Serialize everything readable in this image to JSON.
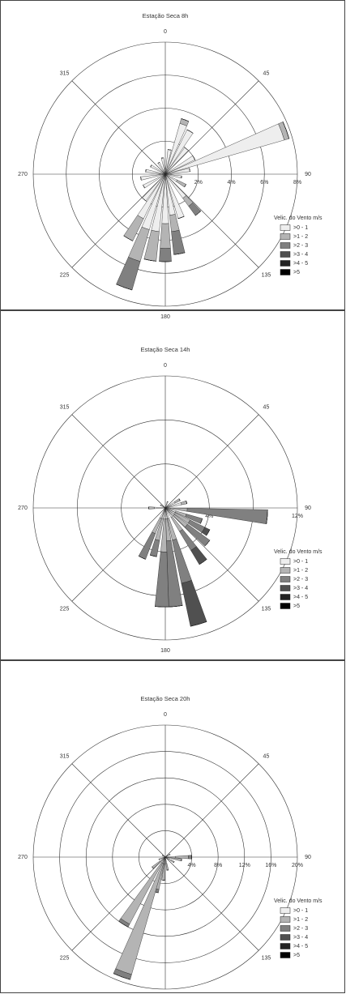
{
  "chart_data": [
    {
      "type": "wind_rose",
      "title": "Estação Seca 8h",
      "angle_ticks": [
        0,
        45,
        90,
        135,
        180,
        225,
        270,
        315
      ],
      "rlim": [
        0,
        8
      ],
      "rticks": [
        {
          "value": 2,
          "label": "2%"
        },
        {
          "value": 4,
          "label": "4%"
        },
        {
          "value": 6,
          "label": "6%"
        },
        {
          "value": 8,
          "label": "8%"
        }
      ],
      "legend_title": "Velic. do Vento m/s",
      "directions": [
        10,
        20,
        30,
        40,
        60,
        70,
        80,
        100,
        120,
        140,
        160,
        170,
        180,
        190,
        200,
        210,
        220,
        240,
        260,
        280,
        300,
        330,
        350
      ],
      "series": [
        {
          "name": ">0 - 1",
          "color": "#eeeeee",
          "values": [
            1.5,
            3.2,
            3.0,
            2.0,
            2.0,
            7.5,
            1.5,
            1.0,
            0.8,
            1.8,
            2.8,
            2.5,
            3.0,
            3.5,
            3.5,
            3.0,
            2.0,
            1.5,
            1.5,
            1.2,
            1.0,
            0.8,
            1.0
          ]
        },
        {
          "name": ">1 - 2",
          "color": "#b4b4b4",
          "values": [
            0,
            0.3,
            0,
            0,
            0,
            0.3,
            0,
            0,
            0.6,
            0.6,
            0,
            1.0,
            1.5,
            1.8,
            2.0,
            1.5,
            0,
            0,
            0,
            0,
            0,
            0,
            0
          ]
        },
        {
          "name": ">2 - 3",
          "color": "#808080",
          "values": [
            0,
            0,
            0,
            0,
            0,
            0,
            0,
            0,
            0,
            0.7,
            0,
            1.4,
            0.8,
            0,
            1.8,
            0,
            0,
            0,
            0,
            0,
            0,
            0,
            0
          ]
        },
        {
          "name": ">3 - 4",
          "color": "#505050",
          "values": [
            0,
            0,
            0,
            0,
            0,
            0,
            0,
            0,
            0,
            0,
            0,
            0,
            0,
            0,
            0,
            0,
            0,
            0,
            0,
            0,
            0,
            0,
            0
          ]
        },
        {
          "name": ">4 - 5",
          "color": "#222222",
          "values": [
            0,
            0,
            0,
            0,
            0,
            0,
            0,
            0,
            0,
            0,
            0,
            0,
            0,
            0,
            0,
            0,
            0,
            0,
            0,
            0,
            0,
            0,
            0
          ]
        },
        {
          "name": ">5",
          "color": "#000000",
          "values": [
            0,
            0,
            0,
            0,
            0,
            0,
            0,
            0,
            0,
            0,
            0,
            0,
            0,
            0,
            0,
            0,
            0,
            0,
            0,
            0,
            0,
            0,
            0
          ]
        }
      ]
    },
    {
      "type": "wind_rose",
      "title": "Estação Seca 14h",
      "angle_ticks": [
        0,
        45,
        90,
        135,
        180,
        225,
        270,
        315
      ],
      "rlim": [
        0,
        12
      ],
      "rticks": [
        {
          "value": 4,
          "label": "4%"
        },
        {
          "value": 8,
          "label": "8%"
        },
        {
          "value": 12,
          "label": "12%"
        }
      ],
      "legend_title": "Velic. do Vento m/s",
      "directions": [
        20,
        60,
        75,
        95,
        110,
        120,
        130,
        145,
        164,
        174,
        182,
        194,
        205,
        270,
        300
      ],
      "series": [
        {
          "name": ">0 - 1",
          "color": "#eeeeee",
          "values": [
            0.6,
            1.0,
            1.5,
            0.5,
            1.0,
            1.0,
            1.0,
            1.0,
            1.0,
            1.0,
            1.0,
            1.0,
            1.0,
            1.0,
            0.5
          ]
        },
        {
          "name": ">1 - 2",
          "color": "#b4b4b4",
          "values": [
            0,
            0.5,
            0.5,
            1.5,
            1.0,
            1.5,
            1.5,
            1.5,
            2.0,
            2.0,
            3.0,
            2.0,
            1.5,
            0.5,
            0
          ]
        },
        {
          "name": ">2 - 3",
          "color": "#808080",
          "values": [
            0,
            0,
            0,
            7.3,
            1.5,
            1.5,
            2.5,
            2.0,
            4.0,
            6.0,
            5.0,
            1.5,
            2.5,
            0,
            0
          ]
        },
        {
          "name": ">3 - 4",
          "color": "#505050",
          "values": [
            0,
            0,
            0,
            0,
            0,
            0.5,
            0,
            1.5,
            4.0,
            0,
            0,
            0,
            0,
            0,
            0
          ]
        },
        {
          "name": ">4 - 5",
          "color": "#222222",
          "values": [
            0,
            0,
            0,
            0,
            0,
            0,
            0,
            0,
            0,
            0,
            0,
            0,
            0,
            0,
            0
          ]
        },
        {
          "name": ">5",
          "color": "#000000",
          "values": [
            0,
            0,
            0,
            0,
            0,
            0,
            0,
            0,
            0,
            0,
            0,
            0,
            0,
            0,
            0
          ]
        }
      ]
    },
    {
      "type": "wind_rose",
      "title": "Estação Seca 20h",
      "angle_ticks": [
        0,
        45,
        90,
        135,
        180,
        225,
        270,
        315
      ],
      "rlim": [
        0,
        20
      ],
      "rticks": [
        {
          "value": 4,
          "label": "4%"
        },
        {
          "value": 8,
          "label": "8%"
        },
        {
          "value": 12,
          "label": "12%"
        },
        {
          "value": 16,
          "label": "16%"
        },
        {
          "value": 20,
          "label": "20%"
        }
      ],
      "legend_title": "Velic. do Vento m/s",
      "directions": [
        60,
        90,
        100,
        120,
        170,
        185,
        195,
        200,
        212,
        230,
        250,
        300
      ],
      "series": [
        {
          "name": ">0 - 1",
          "color": "#eeeeee",
          "values": [
            0.8,
            1.5,
            1.0,
            1.0,
            1.0,
            1.0,
            1.0,
            1.0,
            1.0,
            1.0,
            1.0,
            0.5
          ]
        },
        {
          "name": ">1 - 2",
          "color": "#b4b4b4",
          "values": [
            0,
            2.0,
            1.5,
            0.5,
            1.0,
            2.5,
            4.0,
            17.5,
            10.5,
            1.5,
            0,
            0
          ]
        },
        {
          "name": ">2 - 3",
          "color": "#808080",
          "values": [
            0,
            0.5,
            0,
            0,
            0,
            0,
            0.5,
            0.8,
            0.5,
            0,
            0,
            0
          ]
        },
        {
          "name": ">3 - 4",
          "color": "#505050",
          "values": [
            0,
            0,
            0,
            0,
            0,
            0,
            0,
            0,
            0,
            0,
            0,
            0
          ]
        },
        {
          "name": ">4 - 5",
          "color": "#222222",
          "values": [
            0,
            0,
            0,
            0,
            0,
            0,
            0,
            0,
            0,
            0,
            0,
            0
          ]
        },
        {
          "name": ">5",
          "color": "#000000",
          "values": [
            0,
            0,
            0,
            0,
            0,
            0,
            0,
            0,
            0,
            0,
            0,
            0
          ]
        }
      ]
    }
  ]
}
